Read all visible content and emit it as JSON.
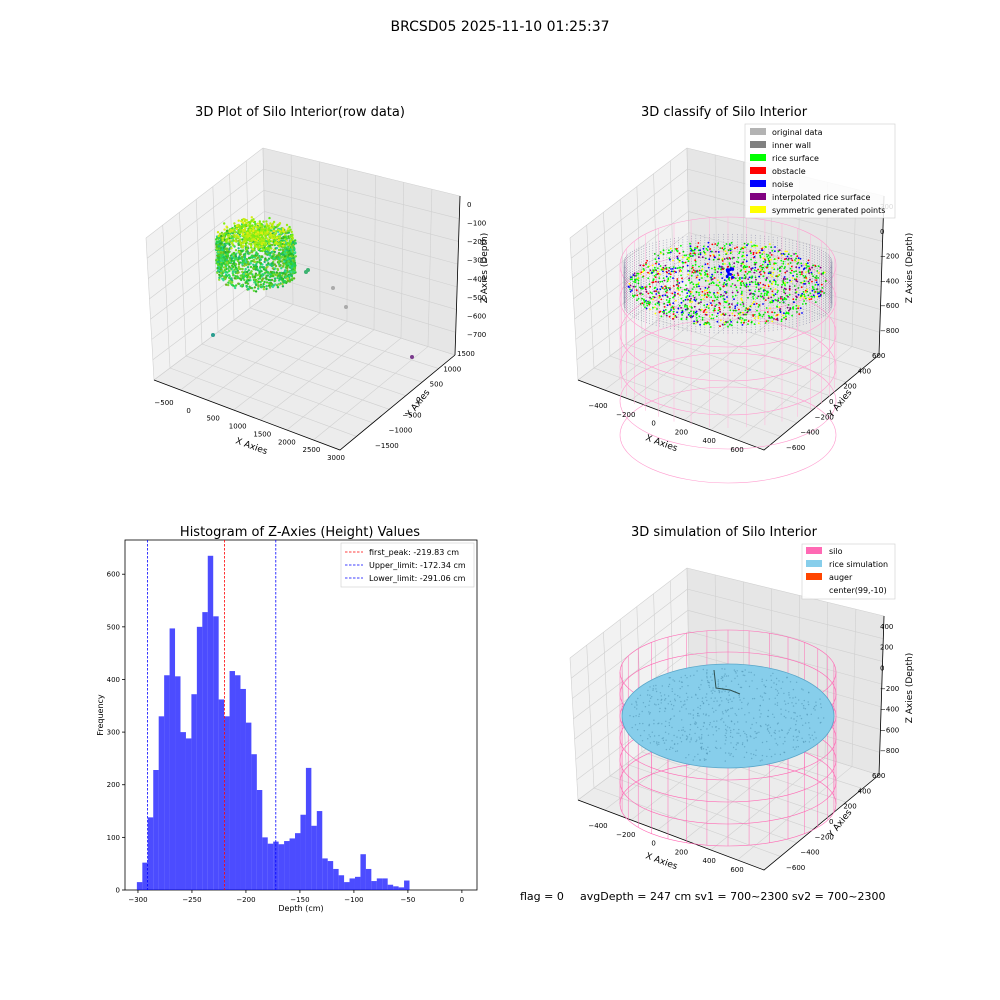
{
  "suptitle": "BRCSD05 2025-11-10 01:25:37",
  "footer": {
    "flag": "flag = 0",
    "avg": "avgDepth = 247 cm  sv1 = 700~2300  sv2 = 700~2300"
  },
  "chart_data": [
    {
      "type": "scatter",
      "panel": "3d-raw",
      "title": "3D Plot of Silo Interior(row data)",
      "xlabel": "X Axies",
      "ylabel": "Y Axies",
      "zlabel": "Z Axies (Depth)",
      "x_ticks": [
        "−500",
        "0",
        "500",
        "1000",
        "1500",
        "2000",
        "2500",
        "3000"
      ],
      "y_ticks": [
        "−1500",
        "−1000",
        "−500",
        "0",
        "500",
        "1000",
        "1500"
      ],
      "z_ticks": [
        "0",
        "−100",
        "−200",
        "−300",
        "−400",
        "−500",
        "−600",
        "−700"
      ],
      "colormap": "viridis"
    },
    {
      "type": "scatter",
      "panel": "3d-classify",
      "title": "3D classify of Silo Interior",
      "xlabel": "X Axies",
      "ylabel": "Y Axies",
      "zlabel": "Z Axies (Depth)",
      "x_ticks": [
        "−400",
        "−200",
        "0",
        "200",
        "400",
        "600"
      ],
      "y_ticks": [
        "−600",
        "−400",
        "−200",
        "0",
        "200",
        "400",
        "600"
      ],
      "z_ticks": [
        "200",
        "0",
        "−200",
        "−400",
        "−600",
        "−800"
      ],
      "legend": [
        {
          "label": "original data",
          "color": "#b3b3b3"
        },
        {
          "label": "inner wall",
          "color": "#808080"
        },
        {
          "label": "rice surface",
          "color": "#00ff00"
        },
        {
          "label": "obstacle",
          "color": "#ff0000"
        },
        {
          "label": "noise",
          "color": "#0000ff"
        },
        {
          "label": "interpolated rice surface",
          "color": "#800080"
        },
        {
          "label": "symmetric generated points",
          "color": "#ffff00"
        }
      ]
    },
    {
      "type": "bar",
      "panel": "histogram",
      "title": "Histogram of Z-Axies (Height) Values",
      "xlabel": "Depth (cm)",
      "ylabel": "Frequency",
      "xlim": [
        -312,
        14
      ],
      "ylim": [
        0,
        665
      ],
      "bar_color": "#0000ff",
      "bin_start": -301,
      "bin_width": 5.05,
      "values": [
        15,
        52,
        138,
        228,
        330,
        408,
        497,
        406,
        300,
        288,
        372,
        500,
        528,
        635,
        520,
        362,
        330,
        416,
        408,
        382,
        318,
        258,
        190,
        100,
        88,
        92,
        87,
        93,
        98,
        108,
        143,
        232,
        122,
        150,
        60,
        55,
        40,
        28,
        15,
        22,
        25,
        68,
        40,
        17,
        22,
        22,
        10,
        7,
        5,
        18
      ],
      "x_ticks": [
        -300,
        -250,
        -200,
        -150,
        -100,
        -50,
        0
      ],
      "x_tick_labels": [
        "−300",
        "−250",
        "−200",
        "−150",
        "−100",
        "−50",
        "0"
      ],
      "y_ticks": [
        0,
        100,
        200,
        300,
        400,
        500,
        600
      ],
      "vlines": [
        {
          "x": -219.83,
          "color": "#ff0000",
          "label": "first_peak: -219.83 cm"
        },
        {
          "x": -172.34,
          "color": "#0000ff",
          "label": "Upper_limit: -172.34 cm"
        },
        {
          "x": -291.06,
          "color": "#0000ff",
          "label": "Lower_limit: -291.06 cm"
        }
      ],
      "legend_position": "top-right"
    },
    {
      "type": "scatter",
      "panel": "3d-simulation",
      "title": "3D simulation of Silo Interior",
      "xlabel": "X Axies",
      "ylabel": "Y Axies",
      "zlabel": "Z Axies (Depth)",
      "x_ticks": [
        "−400",
        "−200",
        "0",
        "200",
        "400",
        "600"
      ],
      "y_ticks": [
        "−600",
        "−400",
        "−200",
        "0",
        "200",
        "400",
        "600"
      ],
      "z_ticks": [
        "400",
        "200",
        "0",
        "−200",
        "−400",
        "−600",
        "−800"
      ],
      "legend": [
        {
          "label": "silo",
          "color": "#ff69b4"
        },
        {
          "label": "rice simulation",
          "color": "#87ceeb"
        },
        {
          "label": "auger",
          "color": "#ff4500"
        },
        {
          "label": "center(99,-10)",
          "color": "none"
        }
      ]
    }
  ]
}
